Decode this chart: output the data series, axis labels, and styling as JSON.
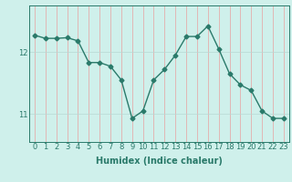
{
  "xlabel": "Humidex (Indice chaleur)",
  "ylabel": "",
  "x": [
    0,
    1,
    2,
    3,
    4,
    5,
    6,
    7,
    8,
    9,
    10,
    11,
    12,
    13,
    14,
    15,
    16,
    17,
    18,
    19,
    20,
    21,
    22,
    23
  ],
  "y": [
    12.27,
    12.22,
    12.22,
    12.23,
    12.18,
    11.83,
    11.83,
    11.77,
    11.55,
    10.93,
    11.05,
    11.55,
    11.72,
    11.95,
    12.25,
    12.25,
    12.42,
    12.05,
    11.65,
    11.47,
    11.38,
    11.05,
    10.93,
    10.93
  ],
  "line_color": "#2a7a6a",
  "bg_color": "#cff0eb",
  "grid_color_v": "#e8a0a0",
  "grid_color_h": "#b8d8d4",
  "yticks": [
    11,
    12
  ],
  "ylim": [
    10.55,
    12.75
  ],
  "xlim": [
    -0.5,
    23.5
  ],
  "xticks": [
    0,
    1,
    2,
    3,
    4,
    5,
    6,
    7,
    8,
    9,
    10,
    11,
    12,
    13,
    14,
    15,
    16,
    17,
    18,
    19,
    20,
    21,
    22,
    23
  ],
  "xlabel_fontsize": 7,
  "tick_fontsize": 6,
  "marker": "D",
  "markersize": 2.5,
  "linewidth": 1.0
}
